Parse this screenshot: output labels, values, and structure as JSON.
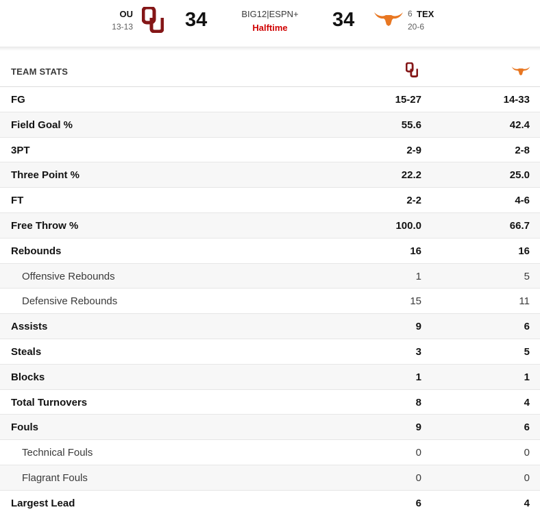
{
  "scoreboard": {
    "home": {
      "abbr": "OU",
      "record": "13-13",
      "score": "34",
      "logo_icon": "ou-logo-icon",
      "color": "#841617"
    },
    "away": {
      "abbr": "TEX",
      "rank": "6",
      "record": "20-6",
      "score": "34",
      "logo_icon": "longhorn-logo-icon",
      "color": "#e87722"
    },
    "network": "BIG12|ESPN+",
    "status": "Halftime",
    "status_color": "#d00000"
  },
  "stats": {
    "header_label": "TEAM STATS",
    "rows": [
      {
        "label": "FG",
        "home": "15-27",
        "away": "14-33",
        "sub": false
      },
      {
        "label": "Field Goal %",
        "home": "55.6",
        "away": "42.4",
        "sub": false
      },
      {
        "label": "3PT",
        "home": "2-9",
        "away": "2-8",
        "sub": false
      },
      {
        "label": "Three Point %",
        "home": "22.2",
        "away": "25.0",
        "sub": false
      },
      {
        "label": "FT",
        "home": "2-2",
        "away": "4-6",
        "sub": false
      },
      {
        "label": "Free Throw %",
        "home": "100.0",
        "away": "66.7",
        "sub": false
      },
      {
        "label": "Rebounds",
        "home": "16",
        "away": "16",
        "sub": false
      },
      {
        "label": "Offensive Rebounds",
        "home": "1",
        "away": "5",
        "sub": true
      },
      {
        "label": "Defensive Rebounds",
        "home": "15",
        "away": "11",
        "sub": true
      },
      {
        "label": "Assists",
        "home": "9",
        "away": "6",
        "sub": false
      },
      {
        "label": "Steals",
        "home": "3",
        "away": "5",
        "sub": false
      },
      {
        "label": "Blocks",
        "home": "1",
        "away": "1",
        "sub": false
      },
      {
        "label": "Total Turnovers",
        "home": "8",
        "away": "4",
        "sub": false
      },
      {
        "label": "Fouls",
        "home": "9",
        "away": "6",
        "sub": false
      },
      {
        "label": "Technical Fouls",
        "home": "0",
        "away": "0",
        "sub": true
      },
      {
        "label": "Flagrant Fouls",
        "home": "0",
        "away": "0",
        "sub": true
      },
      {
        "label": "Largest Lead",
        "home": "6",
        "away": "4",
        "sub": false
      }
    ]
  }
}
